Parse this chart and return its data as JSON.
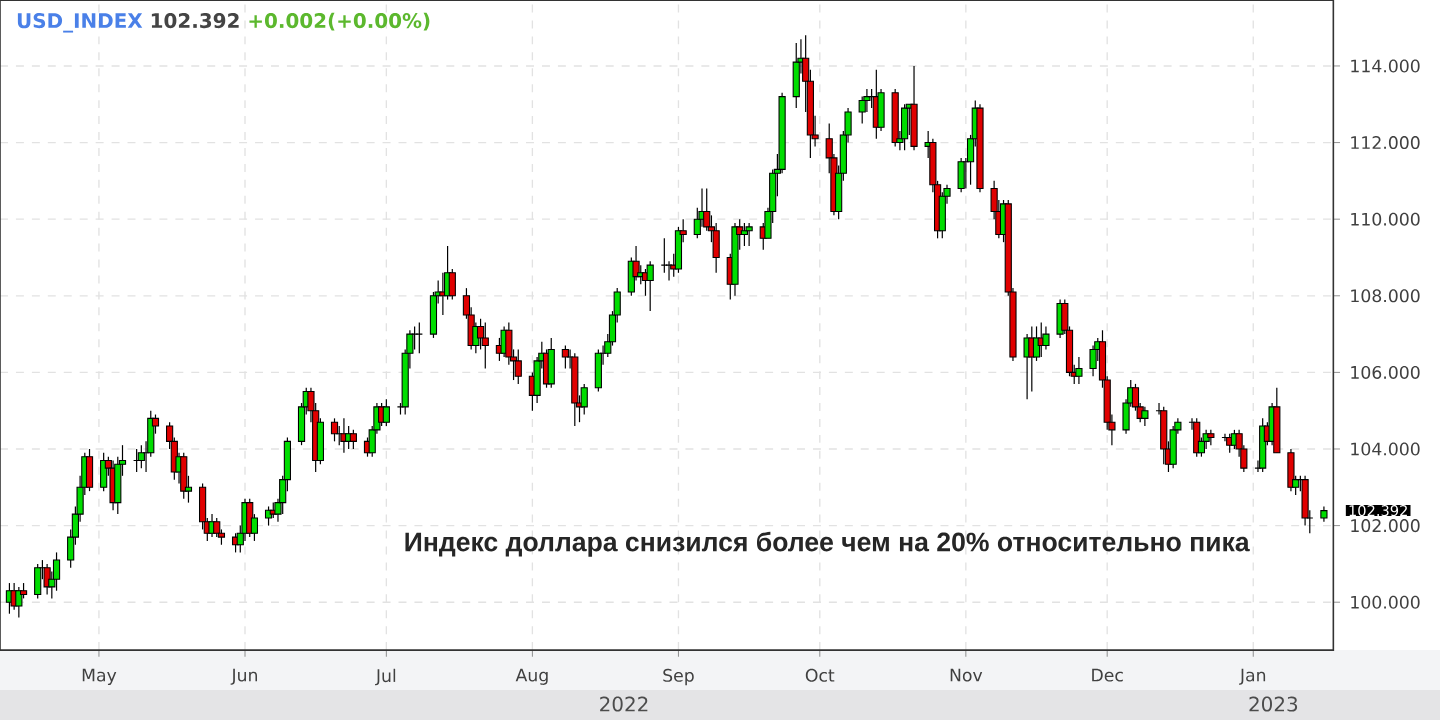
{
  "chart_data": {
    "type": "candlestick",
    "title": "USD_INDEX",
    "subtitle": "102.392",
    "annotations": [
      "+0.002(+0.00%)",
      "Индекс доллара снизился более чем на 20% относительно пика",
      "2022",
      "2023",
      "102.392"
    ],
    "x": [
      "2022-04-12",
      "2022-04-13",
      "2022-04-14",
      "2022-04-15",
      "2022-04-18",
      "2022-04-19",
      "2022-04-20",
      "2022-04-21",
      "2022-04-22",
      "2022-04-25",
      "2022-04-26",
      "2022-04-27",
      "2022-04-28",
      "2022-04-29",
      "2022-05-02",
      "2022-05-03",
      "2022-05-04",
      "2022-05-05",
      "2022-05-06",
      "2022-05-09",
      "2022-05-10",
      "2022-05-11",
      "2022-05-12",
      "2022-05-13",
      "2022-05-16",
      "2022-05-17",
      "2022-05-18",
      "2022-05-19",
      "2022-05-20",
      "2022-05-23",
      "2022-05-24",
      "2022-05-25",
      "2022-05-26",
      "2022-05-27",
      "2022-05-30",
      "2022-05-31",
      "2022-06-01",
      "2022-06-02",
      "2022-06-03",
      "2022-06-06",
      "2022-06-07",
      "2022-06-08",
      "2022-06-09",
      "2022-06-10",
      "2022-06-13",
      "2022-06-14",
      "2022-06-15",
      "2022-06-16",
      "2022-06-17",
      "2022-06-20",
      "2022-06-21",
      "2022-06-22",
      "2022-06-23",
      "2022-06-24",
      "2022-06-27",
      "2022-06-28",
      "2022-06-29",
      "2022-06-30",
      "2022-07-01",
      "2022-07-04",
      "2022-07-05",
      "2022-07-06",
      "2022-07-07",
      "2022-07-08",
      "2022-07-11",
      "2022-07-12",
      "2022-07-13",
      "2022-07-14",
      "2022-07-15",
      "2022-07-18",
      "2022-07-19",
      "2022-07-20",
      "2022-07-21",
      "2022-07-22",
      "2022-07-25",
      "2022-07-26",
      "2022-07-27",
      "2022-07-28",
      "2022-07-29",
      "2022-08-01",
      "2022-08-02",
      "2022-08-03",
      "2022-08-04",
      "2022-08-05",
      "2022-08-08",
      "2022-08-09",
      "2022-08-10",
      "2022-08-11",
      "2022-08-12",
      "2022-08-15",
      "2022-08-16",
      "2022-08-17",
      "2022-08-18",
      "2022-08-19",
      "2022-08-22",
      "2022-08-23",
      "2022-08-24",
      "2022-08-25",
      "2022-08-26",
      "2022-08-29",
      "2022-08-30",
      "2022-08-31",
      "2022-09-01",
      "2022-09-02",
      "2022-09-05",
      "2022-09-06",
      "2022-09-07",
      "2022-09-08",
      "2022-09-09",
      "2022-09-12",
      "2022-09-13",
      "2022-09-14",
      "2022-09-15",
      "2022-09-16",
      "2022-09-19",
      "2022-09-20",
      "2022-09-21",
      "2022-09-22",
      "2022-09-23",
      "2022-09-26",
      "2022-09-27",
      "2022-09-28",
      "2022-09-29",
      "2022-09-30",
      "2022-10-03",
      "2022-10-04",
      "2022-10-05",
      "2022-10-06",
      "2022-10-07",
      "2022-10-10",
      "2022-10-11",
      "2022-10-12",
      "2022-10-13",
      "2022-10-14",
      "2022-10-17",
      "2022-10-18",
      "2022-10-19",
      "2022-10-20",
      "2022-10-21",
      "2022-10-24",
      "2022-10-25",
      "2022-10-26",
      "2022-10-27",
      "2022-10-28",
      "2022-10-31",
      "2022-11-01",
      "2022-11-02",
      "2022-11-03",
      "2022-11-04",
      "2022-11-07",
      "2022-11-08",
      "2022-11-09",
      "2022-11-10",
      "2022-11-11",
      "2022-11-14",
      "2022-11-15",
      "2022-11-16",
      "2022-11-17",
      "2022-11-18",
      "2022-11-21",
      "2022-11-22",
      "2022-11-23",
      "2022-11-24",
      "2022-11-25",
      "2022-11-28",
      "2022-11-29",
      "2022-11-30",
      "2022-12-01",
      "2022-12-02",
      "2022-12-05",
      "2022-12-06",
      "2022-12-07",
      "2022-12-08",
      "2022-12-09",
      "2022-12-12",
      "2022-12-13",
      "2022-12-14",
      "2022-12-15",
      "2022-12-16",
      "2022-12-19",
      "2022-12-20",
      "2022-12-21",
      "2022-12-22",
      "2022-12-23",
      "2022-12-26",
      "2022-12-27",
      "2022-12-28",
      "2022-12-29",
      "2022-12-30",
      "2023-01-02",
      "2023-01-03",
      "2023-01-04",
      "2023-01-05",
      "2023-01-06",
      "2023-01-09",
      "2023-01-10",
      "2023-01-11",
      "2023-01-12",
      "2023-01-13",
      "2023-01-16"
    ],
    "ohlc": [
      [
        100.0,
        100.5,
        99.7,
        100.3
      ],
      [
        100.3,
        100.5,
        99.8,
        99.9
      ],
      [
        99.9,
        100.4,
        99.6,
        100.3
      ],
      [
        100.3,
        100.5,
        100.1,
        100.2
      ],
      [
        100.2,
        101.0,
        100.1,
        100.9
      ],
      [
        100.9,
        101.1,
        100.6,
        100.9
      ],
      [
        100.9,
        101.0,
        100.2,
        100.4
      ],
      [
        100.4,
        100.8,
        100.1,
        100.6
      ],
      [
        100.6,
        101.3,
        100.3,
        101.1
      ],
      [
        101.1,
        101.9,
        100.9,
        101.7
      ],
      [
        101.7,
        102.5,
        101.5,
        102.3
      ],
      [
        102.3,
        103.3,
        102.1,
        103.0
      ],
      [
        103.0,
        103.9,
        102.8,
        103.8
      ],
      [
        103.8,
        104.0,
        102.9,
        103.0
      ],
      [
        103.0,
        103.9,
        102.9,
        103.7
      ],
      [
        103.7,
        103.8,
        103.3,
        103.5
      ],
      [
        103.5,
        103.7,
        102.4,
        102.6
      ],
      [
        102.6,
        103.8,
        102.3,
        103.6
      ],
      [
        103.6,
        104.1,
        103.3,
        103.7
      ],
      [
        103.7,
        104.0,
        103.4,
        103.7
      ],
      [
        103.7,
        104.1,
        103.5,
        103.9
      ],
      [
        103.9,
        104.2,
        103.4,
        103.9
      ],
      [
        103.9,
        105.0,
        103.8,
        104.8
      ],
      [
        104.8,
        104.9,
        104.4,
        104.6
      ],
      [
        104.6,
        104.7,
        104.0,
        104.2
      ],
      [
        104.2,
        104.3,
        103.2,
        103.4
      ],
      [
        103.4,
        103.9,
        103.1,
        103.8
      ],
      [
        103.8,
        103.9,
        102.7,
        102.9
      ],
      [
        102.9,
        103.3,
        102.6,
        103.0
      ],
      [
        103.0,
        103.1,
        101.9,
        102.1
      ],
      [
        102.1,
        102.2,
        101.6,
        101.8
      ],
      [
        101.8,
        102.3,
        101.7,
        102.1
      ],
      [
        102.1,
        102.2,
        101.7,
        101.8
      ],
      [
        101.8,
        101.9,
        101.5,
        101.7
      ],
      [
        101.7,
        101.8,
        101.3,
        101.5
      ],
      [
        101.5,
        102.0,
        101.3,
        101.8
      ],
      [
        101.8,
        102.7,
        101.6,
        102.6
      ],
      [
        102.6,
        102.7,
        101.7,
        101.8
      ],
      [
        101.8,
        102.3,
        101.6,
        102.2
      ],
      [
        102.2,
        102.5,
        102.0,
        102.4
      ],
      [
        102.4,
        102.6,
        102.2,
        102.3
      ],
      [
        102.3,
        102.7,
        102.1,
        102.6
      ],
      [
        102.6,
        103.3,
        102.3,
        103.2
      ],
      [
        103.2,
        104.3,
        102.9,
        104.2
      ],
      [
        104.2,
        105.2,
        104.1,
        105.1
      ],
      [
        105.1,
        105.6,
        104.9,
        105.5
      ],
      [
        105.5,
        105.6,
        104.7,
        105.0
      ],
      [
        105.0,
        105.2,
        103.4,
        103.7
      ],
      [
        103.7,
        104.8,
        103.6,
        104.7
      ],
      [
        104.7,
        104.8,
        104.2,
        104.4
      ],
      [
        104.4,
        104.6,
        104.1,
        104.4
      ],
      [
        104.4,
        104.8,
        103.9,
        104.2
      ],
      [
        104.2,
        104.6,
        104.0,
        104.4
      ],
      [
        104.4,
        104.5,
        104.0,
        104.2
      ],
      [
        104.2,
        104.3,
        103.8,
        103.9
      ],
      [
        103.9,
        104.6,
        103.8,
        104.5
      ],
      [
        104.5,
        105.2,
        104.4,
        105.1
      ],
      [
        105.1,
        105.2,
        104.6,
        104.7
      ],
      [
        104.7,
        105.3,
        104.6,
        105.1
      ],
      [
        105.1,
        105.2,
        104.9,
        105.1
      ],
      [
        105.1,
        106.6,
        104.9,
        106.5
      ],
      [
        106.5,
        107.1,
        106.1,
        107.0
      ],
      [
        107.0,
        107.2,
        106.6,
        107.0
      ],
      [
        107.0,
        107.3,
        106.5,
        107.0
      ],
      [
        107.0,
        108.1,
        106.9,
        108.0
      ],
      [
        108.0,
        108.4,
        107.8,
        108.1
      ],
      [
        108.1,
        108.6,
        107.5,
        108.0
      ],
      [
        108.0,
        109.3,
        107.9,
        108.6
      ],
      [
        108.6,
        108.7,
        107.9,
        108.0
      ],
      [
        108.0,
        108.2,
        107.4,
        107.5
      ],
      [
        107.5,
        107.7,
        106.6,
        106.7
      ],
      [
        106.7,
        107.3,
        106.5,
        107.2
      ],
      [
        107.2,
        107.4,
        106.6,
        106.9
      ],
      [
        106.9,
        107.3,
        106.1,
        106.7
      ],
      [
        106.7,
        106.9,
        106.3,
        106.5
      ],
      [
        106.5,
        107.2,
        106.4,
        107.1
      ],
      [
        107.1,
        107.3,
        106.2,
        106.4
      ],
      [
        106.4,
        106.6,
        105.8,
        106.3
      ],
      [
        106.3,
        106.6,
        105.7,
        105.9
      ],
      [
        105.9,
        106.0,
        105.0,
        105.4
      ],
      [
        105.4,
        106.4,
        105.2,
        106.3
      ],
      [
        106.3,
        106.8,
        106.1,
        106.5
      ],
      [
        106.5,
        106.6,
        105.6,
        105.7
      ],
      [
        105.7,
        106.9,
        105.6,
        106.6
      ],
      [
        106.6,
        106.7,
        106.1,
        106.4
      ],
      [
        106.4,
        106.6,
        106.1,
        106.4
      ],
      [
        106.4,
        106.5,
        104.6,
        105.2
      ],
      [
        105.2,
        105.4,
        104.7,
        105.1
      ],
      [
        105.1,
        105.7,
        104.9,
        105.6
      ],
      [
        105.6,
        106.6,
        105.5,
        106.5
      ],
      [
        106.5,
        106.7,
        106.2,
        106.5
      ],
      [
        106.5,
        107.0,
        106.4,
        106.8
      ],
      [
        106.8,
        107.6,
        106.7,
        107.5
      ],
      [
        107.5,
        108.2,
        107.3,
        108.1
      ],
      [
        108.1,
        109.0,
        108.0,
        108.9
      ],
      [
        108.9,
        109.3,
        108.4,
        108.5
      ],
      [
        108.5,
        108.8,
        108.3,
        108.6
      ],
      [
        108.6,
        108.7,
        108.0,
        108.4
      ],
      [
        108.4,
        108.9,
        107.6,
        108.8
      ],
      [
        108.8,
        109.5,
        108.6,
        108.8
      ],
      [
        108.8,
        108.9,
        108.4,
        108.8
      ],
      [
        108.8,
        109.1,
        108.5,
        108.7
      ],
      [
        108.7,
        109.8,
        108.6,
        109.7
      ],
      [
        109.7,
        110.0,
        109.4,
        109.6
      ],
      [
        109.6,
        110.3,
        109.5,
        110.0
      ],
      [
        110.0,
        110.8,
        109.8,
        110.2
      ],
      [
        110.2,
        110.8,
        109.7,
        109.8
      ],
      [
        109.8,
        110.1,
        109.4,
        109.7
      ],
      [
        109.7,
        109.9,
        108.6,
        109.0
      ],
      [
        109.0,
        109.1,
        107.9,
        108.3
      ],
      [
        108.3,
        109.9,
        108.0,
        109.8
      ],
      [
        109.8,
        110.0,
        109.2,
        109.6
      ],
      [
        109.6,
        109.9,
        109.3,
        109.7
      ],
      [
        109.7,
        109.9,
        109.3,
        109.8
      ],
      [
        109.8,
        109.9,
        109.2,
        109.5
      ],
      [
        109.5,
        110.3,
        109.5,
        110.2
      ],
      [
        110.2,
        111.3,
        109.9,
        111.2
      ],
      [
        111.2,
        111.7,
        110.6,
        111.3
      ],
      [
        111.3,
        113.3,
        111.2,
        113.2
      ],
      [
        113.2,
        114.6,
        112.9,
        114.1
      ],
      [
        114.1,
        114.7,
        113.8,
        114.2
      ],
      [
        114.2,
        114.8,
        112.8,
        113.6
      ],
      [
        113.6,
        113.9,
        111.6,
        112.2
      ],
      [
        112.2,
        112.7,
        111.9,
        112.1
      ],
      [
        112.1,
        112.5,
        111.2,
        111.6
      ],
      [
        111.6,
        111.7,
        110.1,
        110.2
      ],
      [
        110.2,
        111.4,
        110.0,
        111.2
      ],
      [
        111.2,
        112.3,
        111.0,
        112.2
      ],
      [
        112.2,
        112.9,
        112.0,
        112.8
      ],
      [
        112.8,
        113.2,
        112.5,
        113.1
      ],
      [
        113.1,
        113.4,
        112.8,
        113.2
      ],
      [
        113.2,
        113.4,
        112.9,
        113.2
      ],
      [
        113.2,
        113.9,
        112.1,
        112.4
      ],
      [
        112.4,
        113.4,
        112.3,
        113.3
      ],
      [
        113.3,
        113.4,
        111.9,
        112.0
      ],
      [
        112.0,
        112.3,
        111.8,
        112.1
      ],
      [
        112.1,
        113.0,
        111.8,
        112.9
      ],
      [
        112.9,
        113.0,
        112.2,
        113.0
      ],
      [
        113.0,
        114.0,
        111.8,
        111.9
      ],
      [
        111.9,
        112.3,
        111.6,
        112.0
      ],
      [
        112.0,
        112.1,
        110.7,
        110.9
      ],
      [
        110.9,
        111.0,
        109.5,
        109.7
      ],
      [
        109.7,
        110.7,
        109.5,
        110.6
      ],
      [
        110.6,
        110.9,
        110.4,
        110.8
      ],
      [
        110.8,
        111.6,
        110.7,
        111.5
      ],
      [
        111.5,
        111.6,
        110.8,
        111.5
      ],
      [
        111.5,
        112.2,
        110.9,
        112.1
      ],
      [
        112.1,
        113.1,
        111.9,
        112.9
      ],
      [
        112.9,
        113.0,
        110.7,
        110.8
      ],
      [
        110.8,
        111.0,
        110.0,
        110.2
      ],
      [
        110.2,
        110.5,
        109.5,
        109.6
      ],
      [
        109.6,
        110.5,
        109.4,
        110.4
      ],
      [
        110.4,
        110.5,
        108.0,
        108.1
      ],
      [
        108.1,
        108.2,
        106.3,
        106.4
      ],
      [
        106.4,
        107.0,
        105.3,
        106.9
      ],
      [
        106.9,
        107.2,
        105.5,
        106.4
      ],
      [
        106.4,
        107.2,
        106.3,
        106.9
      ],
      [
        106.9,
        107.3,
        106.4,
        106.7
      ],
      [
        106.7,
        107.2,
        106.6,
        107.0
      ],
      [
        107.0,
        107.9,
        106.9,
        107.8
      ],
      [
        107.8,
        107.9,
        107.0,
        107.1
      ],
      [
        107.1,
        107.2,
        105.9,
        106.0
      ],
      [
        106.0,
        106.2,
        105.7,
        105.9
      ],
      [
        105.9,
        106.4,
        105.7,
        106.1
      ],
      [
        106.1,
        106.7,
        105.9,
        106.6
      ],
      [
        106.6,
        106.9,
        106.3,
        106.8
      ],
      [
        106.8,
        107.1,
        105.6,
        105.8
      ],
      [
        105.8,
        105.9,
        104.5,
        104.7
      ],
      [
        104.7,
        104.9,
        104.1,
        104.5
      ],
      [
        104.5,
        105.3,
        104.4,
        105.2
      ],
      [
        105.2,
        105.8,
        105.1,
        105.6
      ],
      [
        105.6,
        105.7,
        105.0,
        105.1
      ],
      [
        105.1,
        105.2,
        104.7,
        104.8
      ],
      [
        104.8,
        105.1,
        104.6,
        105.0
      ],
      [
        105.0,
        105.2,
        104.9,
        105.0
      ],
      [
        105.0,
        105.1,
        103.6,
        104.0
      ],
      [
        104.0,
        104.2,
        103.4,
        103.6
      ],
      [
        103.6,
        104.6,
        103.5,
        104.5
      ],
      [
        104.5,
        104.8,
        104.4,
        104.7
      ],
      [
        104.7,
        104.8,
        104.5,
        104.7
      ],
      [
        104.7,
        104.8,
        103.8,
        103.9
      ],
      [
        103.9,
        104.3,
        103.8,
        104.2
      ],
      [
        104.2,
        104.5,
        104.0,
        104.4
      ],
      [
        104.4,
        104.5,
        104.1,
        104.3
      ],
      [
        104.3,
        104.4,
        104.2,
        104.3
      ],
      [
        104.3,
        104.4,
        103.9,
        104.1
      ],
      [
        104.1,
        104.5,
        104.0,
        104.4
      ],
      [
        104.4,
        104.5,
        103.8,
        104.0
      ],
      [
        104.0,
        104.1,
        103.4,
        103.5
      ],
      [
        103.5,
        103.7,
        103.4,
        103.5
      ],
      [
        103.5,
        104.8,
        103.4,
        104.6
      ],
      [
        104.6,
        104.7,
        104.1,
        104.2
      ],
      [
        104.2,
        105.2,
        104.1,
        105.1
      ],
      [
        105.1,
        105.6,
        103.9,
        103.9
      ],
      [
        103.9,
        104.0,
        102.9,
        103.0
      ],
      [
        103.0,
        103.3,
        102.8,
        103.2
      ],
      [
        103.2,
        103.3,
        102.9,
        103.2
      ],
      [
        103.2,
        103.3,
        102.0,
        102.2
      ],
      [
        102.2,
        102.4,
        101.8,
        102.2
      ],
      [
        102.2,
        102.5,
        102.1,
        102.392
      ]
    ],
    "xlim": [
      "2022-04-10",
      "2023-01-18"
    ],
    "xticks": [
      {
        "value": "2022-05-01",
        "label": "May"
      },
      {
        "value": "2022-06-01",
        "label": "Jun"
      },
      {
        "value": "2022-07-01",
        "label": "Jul"
      },
      {
        "value": "2022-08-01",
        "label": "Aug"
      },
      {
        "value": "2022-09-01",
        "label": "Sep"
      },
      {
        "value": "2022-10-01",
        "label": "Oct"
      },
      {
        "value": "2022-11-01",
        "label": "Nov"
      },
      {
        "value": "2022-12-01",
        "label": "Dec"
      },
      {
        "value": "2023-01-01",
        "label": "Jan"
      }
    ],
    "ylim": [
      98.75,
      115.72
    ],
    "yticks": [
      {
        "value": 100,
        "label": "100.000"
      },
      {
        "value": 102,
        "label": "102.000"
      },
      {
        "value": 104,
        "label": "104.000"
      },
      {
        "value": 106,
        "label": "106.000"
      },
      {
        "value": 108,
        "label": "108.000"
      },
      {
        "value": 110,
        "label": "110.000"
      },
      {
        "value": 112,
        "label": "112.000"
      },
      {
        "value": 114,
        "label": "114.000"
      }
    ],
    "grid": true
  }
}
